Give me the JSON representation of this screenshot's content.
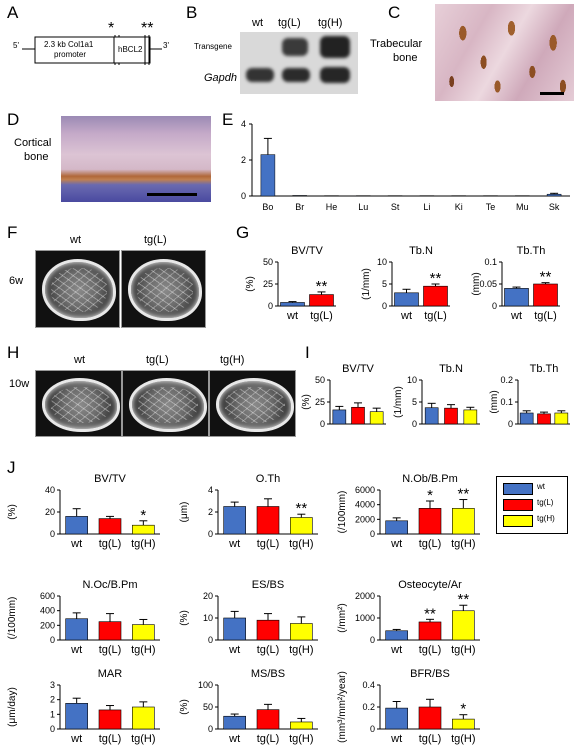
{
  "panels": {
    "a": "A",
    "b": "B",
    "c": "C",
    "d": "D",
    "e": "E",
    "f": "F",
    "g": "G",
    "h": "H",
    "i": "I",
    "j": "J"
  },
  "panel_a": {
    "promoter_line1": "2.3 kb Col1a1",
    "promoter_line2": "promoter",
    "gene": "hBCL2",
    "five_prime": "5'",
    "three_prime": "3'",
    "star1": "*",
    "star2": "**"
  },
  "panel_b": {
    "col_wt": "wt",
    "col_tgl": "tg(L)",
    "col_tgh": "tg(H)",
    "row_transgene": "Transgene",
    "row_gapdh": "Gapdh"
  },
  "panel_c": {
    "label_line1": "Trabecular",
    "label_line2": "bone"
  },
  "panel_d": {
    "label_line1": "Cortical",
    "label_line2": "bone"
  },
  "panel_f": {
    "col_wt": "wt",
    "col_tgl": "tg(L)",
    "age": "6w"
  },
  "panel_h": {
    "col_wt": "wt",
    "col_tgl": "tg(L)",
    "col_tgh": "tg(H)",
    "age": "10w"
  },
  "legend": {
    "wt": "wt",
    "tgl": "tg(L)",
    "tgh": "tg(H)"
  },
  "colors": {
    "wt": "#4472c4",
    "tgl": "#ff0000",
    "tgh": "#ffff00"
  },
  "chart_data": [
    {
      "id": "E",
      "type": "bar",
      "categories": [
        "Bo",
        "Br",
        "He",
        "Lu",
        "St",
        "Li",
        "Ki",
        "Te",
        "Mu",
        "Sk"
      ],
      "values": [
        2.3,
        0.03,
        0.02,
        0.02,
        0.02,
        0.02,
        0.02,
        0.02,
        0.02,
        0.1
      ],
      "errors": [
        0.9,
        0,
        0,
        0,
        0,
        0,
        0,
        0,
        0,
        0.05
      ],
      "ylim": [
        0,
        4
      ],
      "yticks": [
        "0",
        "2",
        "4"
      ]
    },
    {
      "id": "G1",
      "type": "bar",
      "title": "BV/TV",
      "ylabel": "(%)",
      "categories": [
        "wt",
        "tg(L)"
      ],
      "values": [
        4,
        13
      ],
      "errors": [
        1,
        3
      ],
      "ylim": [
        0,
        50
      ],
      "yticks": [
        "0",
        "25",
        "50"
      ],
      "stars": [
        "",
        "**"
      ]
    },
    {
      "id": "G2",
      "type": "bar",
      "title": "Tb.N",
      "ylabel": "(1/mm)",
      "categories": [
        "wt",
        "tg(L)"
      ],
      "values": [
        3,
        4.5
      ],
      "errors": [
        0.8,
        0.5
      ],
      "ylim": [
        0,
        10
      ],
      "yticks": [
        "0",
        "5",
        "10"
      ],
      "stars": [
        "",
        "**"
      ]
    },
    {
      "id": "G3",
      "type": "bar",
      "title": "Tb.Th",
      "ylabel": "(mm)",
      "categories": [
        "wt",
        "tg(L)"
      ],
      "values": [
        0.04,
        0.05
      ],
      "errors": [
        0.003,
        0.003
      ],
      "ylim": [
        0,
        0.1
      ],
      "yticks": [
        "0",
        "0.05",
        "0.1"
      ],
      "stars": [
        "",
        "**"
      ]
    },
    {
      "id": "I1",
      "type": "bar",
      "title": "BV/TV",
      "ylabel": "(%)",
      "categories": [
        "wt",
        "tg(L)",
        "tg(H)"
      ],
      "values": [
        16,
        19,
        14
      ],
      "errors": [
        4,
        5,
        4
      ],
      "ylim": [
        0,
        50
      ],
      "yticks": [
        "0",
        "25",
        "50"
      ],
      "stars": [
        "",
        "",
        ""
      ]
    },
    {
      "id": "I2",
      "type": "bar",
      "title": "Tb.N",
      "ylabel": "(1/mm)",
      "categories": [
        "wt",
        "tg(L)",
        "tg(H)"
      ],
      "values": [
        3.7,
        3.6,
        3.2
      ],
      "errors": [
        1,
        0.8,
        0.6
      ],
      "ylim": [
        0,
        10
      ],
      "yticks": [
        "0",
        "5",
        "10"
      ],
      "stars": [
        "",
        "",
        ""
      ]
    },
    {
      "id": "I3",
      "type": "bar",
      "title": "Tb.Th",
      "ylabel": "(mm)",
      "categories": [
        "wt",
        "tg(L)",
        "tg(H)"
      ],
      "values": [
        0.05,
        0.046,
        0.05
      ],
      "errors": [
        0.01,
        0.008,
        0.01
      ],
      "ylim": [
        0,
        0.2
      ],
      "yticks": [
        "0",
        "0.1",
        "0.2"
      ],
      "stars": [
        "",
        "",
        ""
      ]
    },
    {
      "id": "J1",
      "type": "bar",
      "title": "BV/TV",
      "ylabel": "(%)",
      "categories": [
        "wt",
        "tg(L)",
        "tg(H)"
      ],
      "values": [
        16,
        14,
        8
      ],
      "errors": [
        7,
        2,
        4
      ],
      "ylim": [
        0,
        40
      ],
      "yticks": [
        "0",
        "20",
        "40"
      ],
      "stars": [
        "",
        "",
        "*"
      ]
    },
    {
      "id": "J2",
      "type": "bar",
      "title": "O.Th",
      "ylabel": "(μm)",
      "categories": [
        "wt",
        "tg(L)",
        "tg(H)"
      ],
      "values": [
        2.5,
        2.5,
        1.5
      ],
      "errors": [
        0.4,
        0.7,
        0.3
      ],
      "ylim": [
        0,
        4
      ],
      "yticks": [
        "0",
        "2",
        "4"
      ],
      "stars": [
        "",
        "",
        "**"
      ]
    },
    {
      "id": "J3",
      "type": "bar",
      "title": "N.Ob/B.Pm",
      "ylabel": "(/100mm)",
      "categories": [
        "wt",
        "tg(L)",
        "tg(H)"
      ],
      "values": [
        1800,
        3500,
        3500
      ],
      "errors": [
        400,
        1000,
        1200
      ],
      "ylim": [
        0,
        6000
      ],
      "yticks": [
        "0",
        "2000",
        "4000",
        "6000"
      ],
      "stars": [
        "",
        "*",
        "**"
      ]
    },
    {
      "id": "J4",
      "type": "bar",
      "title": "N.Oc/B.Pm",
      "ylabel": "(/100mm)",
      "categories": [
        "wt",
        "tg(L)",
        "tg(H)"
      ],
      "values": [
        290,
        250,
        210
      ],
      "errors": [
        80,
        110,
        70
      ],
      "ylim": [
        0,
        600
      ],
      "yticks": [
        "0",
        "200",
        "400",
        "600"
      ],
      "stars": [
        "",
        "",
        ""
      ]
    },
    {
      "id": "J5",
      "type": "bar",
      "title": "ES/BS",
      "ylabel": "(%)",
      "categories": [
        "wt",
        "tg(L)",
        "tg(H)"
      ],
      "values": [
        10,
        9,
        7.5
      ],
      "errors": [
        3,
        3,
        3
      ],
      "ylim": [
        0,
        20
      ],
      "yticks": [
        "0",
        "10",
        "20"
      ],
      "stars": [
        "",
        "",
        ""
      ]
    },
    {
      "id": "J6",
      "type": "bar",
      "title": "Osteocyte/Ar",
      "ylabel": "(/mm²)",
      "categories": [
        "wt",
        "tg(L)",
        "tg(H)"
      ],
      "values": [
        420,
        820,
        1330
      ],
      "errors": [
        60,
        120,
        250
      ],
      "ylim": [
        0,
        2000
      ],
      "yticks": [
        "0",
        "1000",
        "2000"
      ],
      "stars": [
        "",
        "**",
        "**"
      ]
    },
    {
      "id": "J7",
      "type": "bar",
      "title": "MAR",
      "ylabel": "(μm/day)",
      "categories": [
        "wt",
        "tg(L)",
        "tg(H)"
      ],
      "values": [
        1.75,
        1.3,
        1.5
      ],
      "errors": [
        0.35,
        0.3,
        0.35
      ],
      "ylim": [
        0,
        3
      ],
      "yticks": [
        "0",
        "1",
        "2",
        "3"
      ],
      "stars": [
        "",
        "",
        ""
      ]
    },
    {
      "id": "J8",
      "type": "bar",
      "title": "MS/BS",
      "ylabel": "(%)",
      "categories": [
        "wt",
        "tg(L)",
        "tg(H)"
      ],
      "values": [
        29,
        44,
        16
      ],
      "errors": [
        5,
        12,
        8
      ],
      "ylim": [
        0,
        100
      ],
      "yticks": [
        "0",
        "50",
        "100"
      ],
      "stars": [
        "",
        "",
        ""
      ]
    },
    {
      "id": "J9",
      "type": "bar",
      "title": "BFR/BS",
      "ylabel": "(mm³/mm²/year)",
      "categories": [
        "wt",
        "tg(L)",
        "tg(H)"
      ],
      "values": [
        0.19,
        0.2,
        0.09
      ],
      "errors": [
        0.06,
        0.07,
        0.04
      ],
      "ylim": [
        0,
        0.4
      ],
      "yticks": [
        "0",
        "0.2",
        "0.4"
      ],
      "stars": [
        "",
        "",
        "*"
      ]
    }
  ]
}
